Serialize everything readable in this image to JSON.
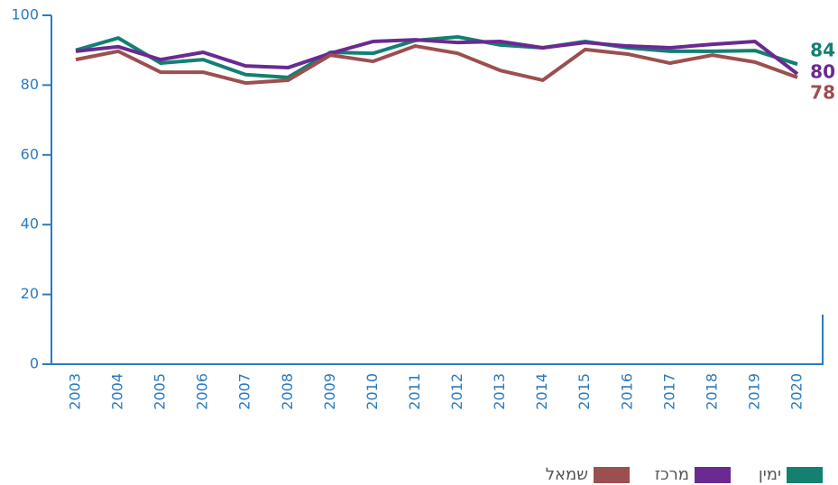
{
  "chart_data": {
    "type": "line",
    "x": [
      "2003",
      "2004",
      "2005",
      "2006",
      "2007",
      "2008",
      "2009",
      "2010",
      "2011",
      "2012",
      "2013",
      "2014",
      "2015",
      "2016",
      "2017",
      "2018",
      "2019",
      "2020"
    ],
    "ylim": [
      0,
      100
    ],
    "yticks": [
      0,
      20,
      40,
      60,
      80,
      100
    ],
    "series": [
      {
        "name": "ימין",
        "color": "#138071",
        "values": [
          90,
          93.5,
          86.3,
          87.3,
          83,
          82.2,
          89.4,
          89.1,
          92.8,
          93.8,
          91.5,
          90.7,
          92.5,
          90.7,
          89.7,
          89.7,
          89.9,
          86
        ]
      },
      {
        "name": "מרכז",
        "color": "#6a2a91",
        "values": [
          89.7,
          91,
          87.3,
          89.4,
          85.5,
          85,
          89.1,
          92.5,
          93,
          92.2,
          92.5,
          90.7,
          92.2,
          91.2,
          90.7,
          91.7,
          92.5,
          83.2
        ]
      },
      {
        "name": "שמאל",
        "color": "#9c4f4f",
        "values": [
          87.3,
          89.7,
          83.7,
          83.7,
          80.6,
          81.4,
          88.6,
          86.8,
          91.2,
          89.1,
          84.2,
          81.4,
          90.2,
          88.9,
          86.3,
          88.6,
          86.6,
          82.2
        ]
      }
    ],
    "annotations": [
      "84",
      "80",
      "78"
    ]
  }
}
